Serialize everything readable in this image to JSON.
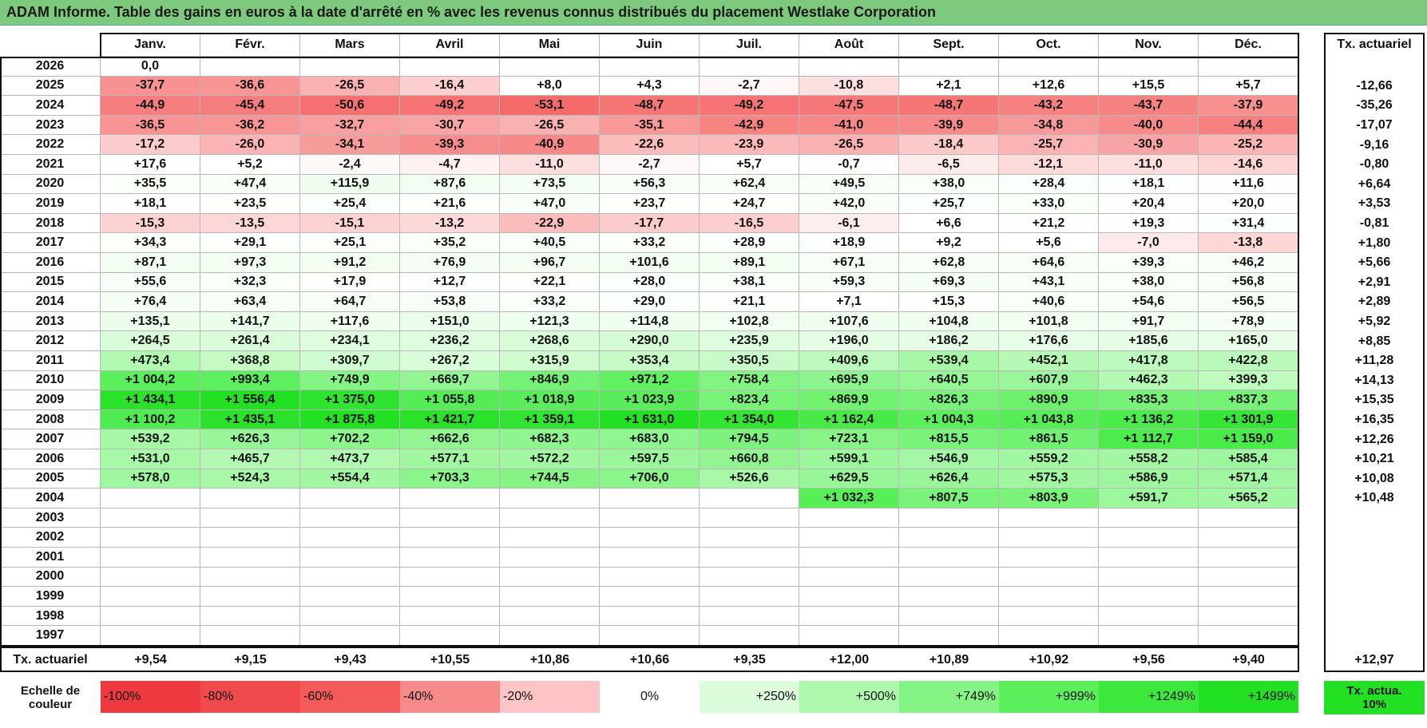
{
  "title": "ADAM Informe. Table des gains en euros à la date d'arrêté en % avec les revenus connus distribués du placement Westlake Corporation",
  "table": {
    "columns": [
      "Janv.",
      "Févr.",
      "Mars",
      "Avril",
      "Mai",
      "Juin",
      "Juil.",
      "Août",
      "Sept.",
      "Oct.",
      "Nov.",
      "Déc."
    ],
    "total_header": "Tx. actuariel",
    "rows": [
      {
        "year": "2026",
        "cells": [
          "0,0",
          null,
          null,
          null,
          null,
          null,
          null,
          null,
          null,
          null,
          null,
          null
        ],
        "total": null
      },
      {
        "year": "2025",
        "cells": [
          "-37,7",
          "-36,6",
          "-26,5",
          "-16,4",
          "+8,0",
          "+4,3",
          "-2,7",
          "-10,8",
          "+2,1",
          "+12,6",
          "+15,5",
          "+5,7"
        ],
        "total": "-12,66"
      },
      {
        "year": "2024",
        "cells": [
          "-44,9",
          "-45,4",
          "-50,6",
          "-49,2",
          "-53,1",
          "-48,7",
          "-49,2",
          "-47,5",
          "-48,7",
          "-43,2",
          "-43,7",
          "-37,9"
        ],
        "total": "-35,26"
      },
      {
        "year": "2023",
        "cells": [
          "-36,5",
          "-36,2",
          "-32,7",
          "-30,7",
          "-26,5",
          "-35,1",
          "-42,9",
          "-41,0",
          "-39,9",
          "-34,8",
          "-40,0",
          "-44,4"
        ],
        "total": "-17,07"
      },
      {
        "year": "2022",
        "cells": [
          "-17,2",
          "-26,0",
          "-34,1",
          "-39,3",
          "-40,9",
          "-22,6",
          "-23,9",
          "-26,5",
          "-18,4",
          "-25,7",
          "-30,9",
          "-25,2"
        ],
        "total": "-9,16"
      },
      {
        "year": "2021",
        "cells": [
          "+17,6",
          "+5,2",
          "-2,4",
          "-4,7",
          "-11,0",
          "-2,7",
          "+5,7",
          "-0,7",
          "-6,5",
          "-12,1",
          "-11,0",
          "-14,6"
        ],
        "total": "-0,80"
      },
      {
        "year": "2020",
        "cells": [
          "+35,5",
          "+47,4",
          "+115,9",
          "+87,6",
          "+73,5",
          "+56,3",
          "+62,4",
          "+49,5",
          "+38,0",
          "+28,4",
          "+18,1",
          "+11,6"
        ],
        "total": "+6,64"
      },
      {
        "year": "2019",
        "cells": [
          "+18,1",
          "+23,5",
          "+25,4",
          "+21,6",
          "+47,0",
          "+23,7",
          "+24,7",
          "+42,0",
          "+25,7",
          "+33,0",
          "+20,4",
          "+20,0"
        ],
        "total": "+3,53"
      },
      {
        "year": "2018",
        "cells": [
          "-15,3",
          "-13,5",
          "-15,1",
          "-13,2",
          "-22,9",
          "-17,7",
          "-16,5",
          "-6,1",
          "+6,6",
          "+21,2",
          "+19,3",
          "+31,4"
        ],
        "total": "-0,81"
      },
      {
        "year": "2017",
        "cells": [
          "+34,3",
          "+29,1",
          "+25,1",
          "+35,2",
          "+40,5",
          "+33,2",
          "+28,9",
          "+18,9",
          "+9,2",
          "+5,6",
          "-7,0",
          "-13,8"
        ],
        "total": "+1,80"
      },
      {
        "year": "2016",
        "cells": [
          "+87,1",
          "+97,3",
          "+91,2",
          "+76,9",
          "+96,7",
          "+101,6",
          "+89,1",
          "+67,1",
          "+62,8",
          "+64,6",
          "+39,3",
          "+46,2"
        ],
        "total": "+5,66"
      },
      {
        "year": "2015",
        "cells": [
          "+55,6",
          "+32,3",
          "+17,9",
          "+12,7",
          "+22,1",
          "+28,0",
          "+38,1",
          "+59,3",
          "+69,3",
          "+43,1",
          "+38,0",
          "+56,8"
        ],
        "total": "+2,91"
      },
      {
        "year": "2014",
        "cells": [
          "+76,4",
          "+63,4",
          "+64,7",
          "+53,8",
          "+33,2",
          "+29,0",
          "+21,1",
          "+7,1",
          "+15,3",
          "+40,6",
          "+54,6",
          "+56,5"
        ],
        "total": "+2,89"
      },
      {
        "year": "2013",
        "cells": [
          "+135,1",
          "+141,7",
          "+117,6",
          "+151,0",
          "+121,3",
          "+114,8",
          "+102,8",
          "+107,6",
          "+104,8",
          "+101,8",
          "+91,7",
          "+78,9"
        ],
        "total": "+5,92"
      },
      {
        "year": "2012",
        "cells": [
          "+264,5",
          "+261,4",
          "+234,1",
          "+236,2",
          "+268,6",
          "+290,0",
          "+235,9",
          "+196,0",
          "+186,2",
          "+176,6",
          "+185,6",
          "+165,0"
        ],
        "total": "+8,85"
      },
      {
        "year": "2011",
        "cells": [
          "+473,4",
          "+368,8",
          "+309,7",
          "+267,2",
          "+315,9",
          "+353,4",
          "+350,5",
          "+409,6",
          "+539,4",
          "+452,1",
          "+417,8",
          "+422,8"
        ],
        "total": "+11,28"
      },
      {
        "year": "2010",
        "cells": [
          "+1 004,2",
          "+993,4",
          "+749,9",
          "+669,7",
          "+846,9",
          "+971,2",
          "+758,4",
          "+695,9",
          "+640,5",
          "+607,9",
          "+462,3",
          "+399,3"
        ],
        "total": "+14,13"
      },
      {
        "year": "2009",
        "cells": [
          "+1 434,1",
          "+1 556,4",
          "+1 375,0",
          "+1 055,8",
          "+1 018,9",
          "+1 023,9",
          "+823,4",
          "+869,9",
          "+826,3",
          "+890,9",
          "+835,3",
          "+837,3"
        ],
        "total": "+15,35"
      },
      {
        "year": "2008",
        "cells": [
          "+1 100,2",
          "+1 435,1",
          "+1 875,8",
          "+1 421,7",
          "+1 359,1",
          "+1 631,0",
          "+1 354,0",
          "+1 162,4",
          "+1 004,3",
          "+1 043,8",
          "+1 136,2",
          "+1 301,9"
        ],
        "total": "+16,35"
      },
      {
        "year": "2007",
        "cells": [
          "+539,2",
          "+626,3",
          "+702,2",
          "+662,6",
          "+682,3",
          "+683,0",
          "+794,5",
          "+723,1",
          "+815,5",
          "+861,5",
          "+1 112,7",
          "+1 159,0"
        ],
        "total": "+12,26"
      },
      {
        "year": "2006",
        "cells": [
          "+531,0",
          "+465,7",
          "+473,7",
          "+577,1",
          "+572,2",
          "+597,5",
          "+660,8",
          "+599,1",
          "+546,9",
          "+559,2",
          "+558,2",
          "+585,4"
        ],
        "total": "+10,21"
      },
      {
        "year": "2005",
        "cells": [
          "+578,0",
          "+524,3",
          "+554,4",
          "+703,3",
          "+744,5",
          "+706,0",
          "+526,6",
          "+629,5",
          "+626,4",
          "+575,3",
          "+586,9",
          "+571,4"
        ],
        "total": "+10,08"
      },
      {
        "year": "2004",
        "cells": [
          null,
          null,
          null,
          null,
          null,
          null,
          null,
          "+1 032,3",
          "+807,5",
          "+803,9",
          "+591,7",
          "+565,2"
        ],
        "total": "+10,48"
      },
      {
        "year": "2003",
        "cells": [
          null,
          null,
          null,
          null,
          null,
          null,
          null,
          null,
          null,
          null,
          null,
          null
        ],
        "total": null
      },
      {
        "year": "2002",
        "cells": [
          null,
          null,
          null,
          null,
          null,
          null,
          null,
          null,
          null,
          null,
          null,
          null
        ],
        "total": null
      },
      {
        "year": "2001",
        "cells": [
          null,
          null,
          null,
          null,
          null,
          null,
          null,
          null,
          null,
          null,
          null,
          null
        ],
        "total": null
      },
      {
        "year": "2000",
        "cells": [
          null,
          null,
          null,
          null,
          null,
          null,
          null,
          null,
          null,
          null,
          null,
          null
        ],
        "total": null
      },
      {
        "year": "1999",
        "cells": [
          null,
          null,
          null,
          null,
          null,
          null,
          null,
          null,
          null,
          null,
          null,
          null
        ],
        "total": null
      },
      {
        "year": "1998",
        "cells": [
          null,
          null,
          null,
          null,
          null,
          null,
          null,
          null,
          null,
          null,
          null,
          null
        ],
        "total": null
      },
      {
        "year": "1997",
        "cells": [
          null,
          null,
          null,
          null,
          null,
          null,
          null,
          null,
          null,
          null,
          null,
          null
        ],
        "total": null
      }
    ],
    "footer": {
      "label": "Tx. actuariel",
      "cells": [
        "+9,54",
        "+9,15",
        "+9,43",
        "+10,55",
        "+10,86",
        "+10,66",
        "+9,35",
        "+12,00",
        "+10,89",
        "+10,92",
        "+9,56",
        "+9,40"
      ],
      "total": "+12,97"
    }
  },
  "scale": {
    "label": "Echelle de couleur",
    "stops": [
      {
        "label": "-100%",
        "color": "#ee3a3e"
      },
      {
        "label": "-80%",
        "color": "#f14a4c"
      },
      {
        "label": "-60%",
        "color": "#f45a5a"
      },
      {
        "label": "-40%",
        "color": "#f78a8a"
      },
      {
        "label": "-20%",
        "color": "#fcc4c4"
      },
      {
        "label": "0%",
        "color": "#ffffff"
      },
      {
        "label": "+250%",
        "color": "#dcfcdc"
      },
      {
        "label": "+500%",
        "color": "#acf8ac"
      },
      {
        "label": "+749%",
        "color": "#84f484"
      },
      {
        "label": "+999%",
        "color": "#5cef5c"
      },
      {
        "label": "+1249%",
        "color": "#3ce83c"
      },
      {
        "label": "+1499%",
        "color": "#22e022"
      }
    ],
    "total_label": "Tx. actua. 10%",
    "total_color": "#22e022"
  }
}
